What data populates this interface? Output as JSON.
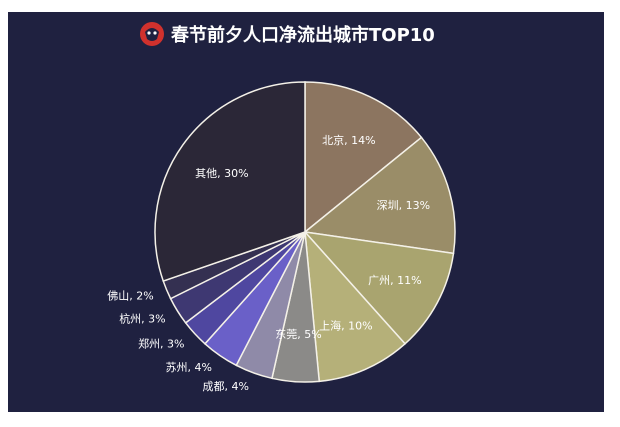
{
  "logo": {
    "icon": "red-mascot-logo-icon",
    "color": "#d0312d"
  },
  "chart_data": {
    "type": "pie",
    "title": "春节前夕人口净流出城市TOP10",
    "slices": [
      {
        "label": "北京, 14%",
        "value": 14,
        "color": "#8c7560"
      },
      {
        "label": "深圳, 13%",
        "value": 13,
        "color": "#9a8d68"
      },
      {
        "label": "广州, 11%",
        "value": 11,
        "color": "#a9a46f"
      },
      {
        "label": "上海, 10%",
        "value": 10,
        "color": "#b5b079"
      },
      {
        "label": "东莞, 5%",
        "value": 5,
        "color": "#8b8a88"
      },
      {
        "label": "成都, 4%",
        "value": 4,
        "color": "#8f8aa8"
      },
      {
        "label": "苏州, 4%",
        "value": 4,
        "color": "#6a60c8"
      },
      {
        "label": "郑州, 3%",
        "value": 3,
        "color": "#4f47a0"
      },
      {
        "label": "杭州, 3%",
        "value": 3,
        "color": "#3e3872"
      },
      {
        "label": "佛山, 2%",
        "value": 2,
        "color": "#343051"
      },
      {
        "label": "其他, 30%",
        "value": 30,
        "color": "#2b2737"
      }
    ],
    "label_style": [
      "inside",
      "inside",
      "inside",
      "inside",
      "inside",
      "outside",
      "outside",
      "outside",
      "outside",
      "outside",
      "inside"
    ],
    "start_angle_deg": 0,
    "direction": "clockwise",
    "stroke": "#f4f1e8",
    "legend": "none"
  }
}
